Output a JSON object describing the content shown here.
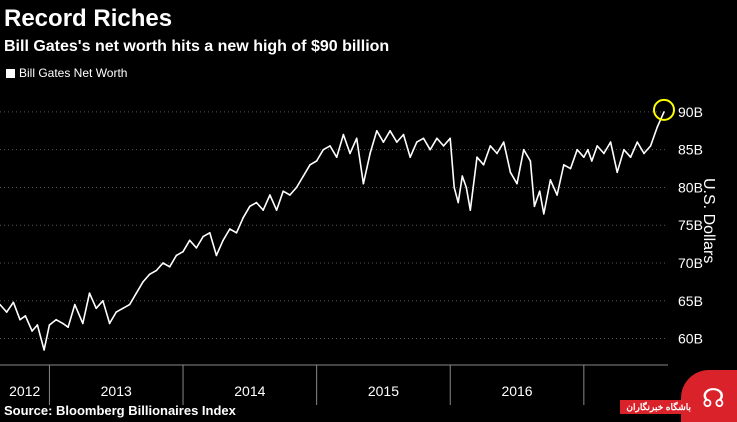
{
  "title": "Record Riches",
  "subtitle": "Bill Gates's net worth hits a new high of $90 billion",
  "source": "Source: Bloomberg Billionaires Index",
  "watermark": {
    "text": "باشگاه خبرنگاران"
  },
  "colors": {
    "background": "#000000",
    "line": "#ffffff",
    "highlight": "#ffff00",
    "grid": "#555555"
  },
  "chart_data": {
    "type": "line",
    "legend": "Bill Gates Net Worth",
    "legend_position": "top-left",
    "ylabel": "U.S. Dollars",
    "y_axis_side": "right",
    "ylim": [
      56.5,
      92.5
    ],
    "yticks": [
      60,
      65,
      70,
      75,
      80,
      85,
      90
    ],
    "ytick_labels": [
      "60B",
      "65B",
      "70B",
      "75B",
      "80B",
      "85B",
      "90B"
    ],
    "xlim": [
      2011.63,
      2016.63
    ],
    "xtick_labels": [
      "2012",
      "2013",
      "2014",
      "2015",
      "2016"
    ],
    "year_boundaries": [
      2012.0,
      2013.0,
      2014.0,
      2015.0,
      2016.0
    ],
    "grid": "horizontal dotted",
    "highlight": {
      "x": 2016.6,
      "y": 90,
      "shape": "circle"
    },
    "series": [
      {
        "name": "Bill Gates Net Worth",
        "x": [
          2011.63,
          2011.68,
          2011.73,
          2011.78,
          2011.82,
          2011.87,
          2011.91,
          2011.96,
          2012.0,
          2012.05,
          2012.1,
          2012.14,
          2012.19,
          2012.25,
          2012.3,
          2012.35,
          2012.4,
          2012.45,
          2012.5,
          2012.55,
          2012.6,
          2012.65,
          2012.7,
          2012.75,
          2012.8,
          2012.85,
          2012.9,
          2012.95,
          2013.0,
          2013.05,
          2013.1,
          2013.15,
          2013.2,
          2013.25,
          2013.3,
          2013.35,
          2013.4,
          2013.45,
          2013.5,
          2013.55,
          2013.6,
          2013.65,
          2013.7,
          2013.75,
          2013.8,
          2013.85,
          2013.9,
          2013.95,
          2014.0,
          2014.05,
          2014.1,
          2014.15,
          2014.2,
          2014.25,
          2014.3,
          2014.35,
          2014.4,
          2014.45,
          2014.5,
          2014.55,
          2014.6,
          2014.65,
          2014.7,
          2014.75,
          2014.8,
          2014.85,
          2014.9,
          2014.95,
          2015.0,
          2015.03,
          2015.06,
          2015.09,
          2015.12,
          2015.15,
          2015.2,
          2015.25,
          2015.3,
          2015.35,
          2015.4,
          2015.45,
          2015.5,
          2015.55,
          2015.6,
          2015.63,
          2015.67,
          2015.7,
          2015.75,
          2015.8,
          2015.85,
          2015.9,
          2015.95,
          2016.0,
          2016.03,
          2016.06,
          2016.1,
          2016.15,
          2016.2,
          2016.25,
          2016.3,
          2016.35,
          2016.4,
          2016.45,
          2016.5,
          2016.55,
          2016.6
        ],
        "y": [
          64.5,
          63.5,
          64.8,
          62.5,
          63.0,
          61.0,
          61.8,
          58.5,
          61.8,
          62.5,
          62.0,
          61.5,
          64.5,
          62.0,
          66.0,
          64.0,
          65.0,
          62.0,
          63.5,
          64.0,
          64.5,
          66.0,
          67.5,
          68.5,
          69.0,
          70.0,
          69.5,
          71.0,
          71.5,
          73.0,
          72.0,
          73.5,
          74.0,
          71.0,
          73.0,
          74.5,
          74.0,
          76.0,
          77.5,
          78.0,
          77.0,
          79.0,
          77.0,
          79.5,
          79.0,
          80.0,
          81.5,
          83.0,
          83.5,
          85.0,
          85.5,
          84.0,
          87.0,
          84.5,
          86.5,
          80.5,
          84.5,
          87.5,
          86.0,
          87.5,
          86.0,
          87.0,
          84.0,
          86.0,
          86.5,
          85.0,
          86.5,
          85.5,
          86.5,
          80.0,
          78.0,
          81.5,
          80.0,
          77.0,
          84.0,
          83.0,
          85.5,
          84.5,
          86.0,
          82.0,
          80.5,
          85.0,
          83.5,
          77.5,
          79.5,
          76.5,
          81.0,
          79.0,
          83.0,
          82.5,
          85.0,
          84.0,
          85.0,
          83.5,
          85.5,
          84.5,
          86.0,
          82.0,
          85.0,
          84.0,
          86.0,
          84.5,
          85.5,
          88.0,
          90.0
        ]
      }
    ]
  }
}
